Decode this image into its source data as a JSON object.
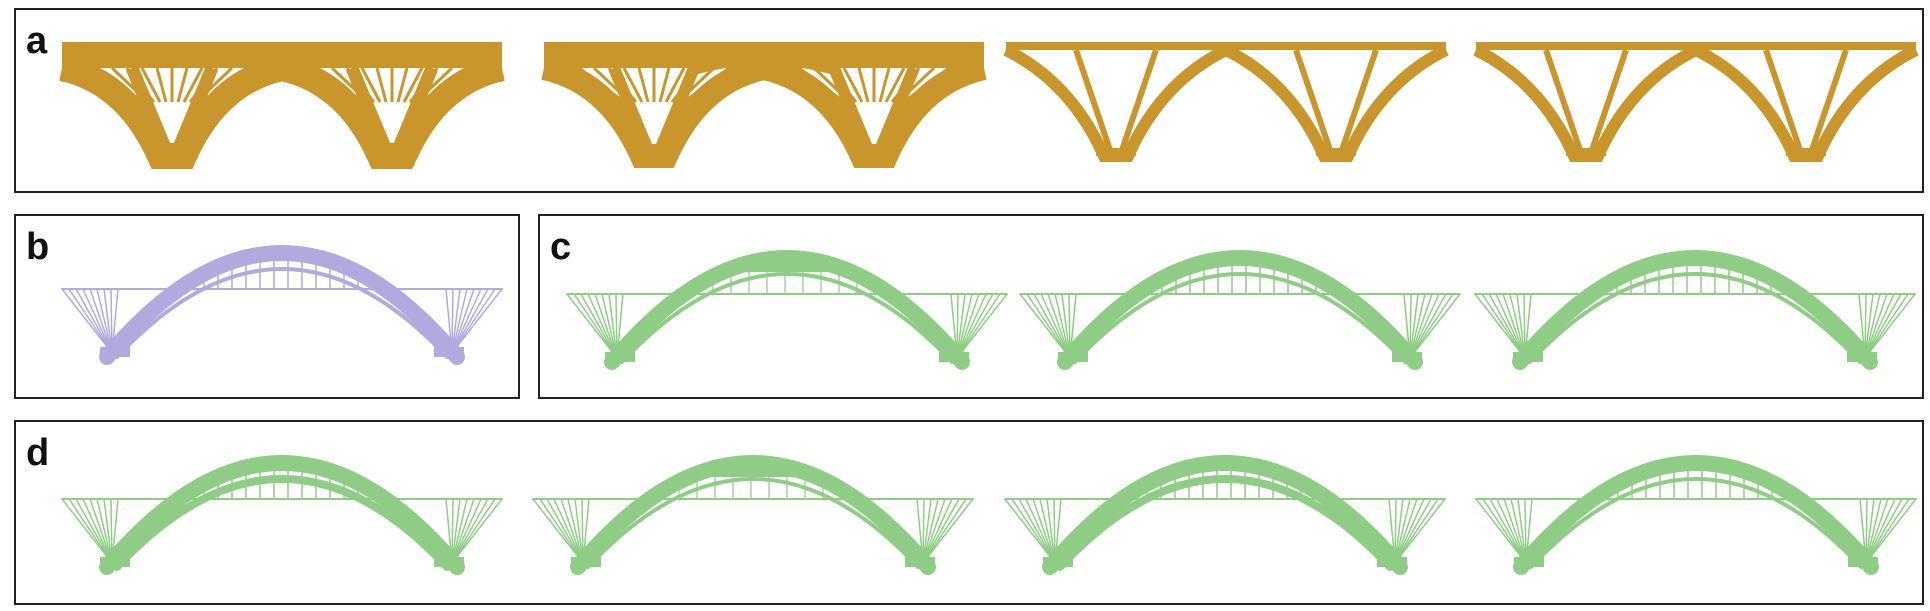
{
  "colors": {
    "gold": "#c9952d",
    "lavender": "#b2aadf",
    "green": "#8fcc86",
    "border": "#222222",
    "letter": "#111111"
  },
  "panels": {
    "a": {
      "label": "a",
      "variant": "gold"
    },
    "b": {
      "label": "b",
      "variant": "lavender"
    },
    "c": {
      "label": "c",
      "variant": "green"
    },
    "d": {
      "label": "d",
      "variant": "green"
    }
  }
}
